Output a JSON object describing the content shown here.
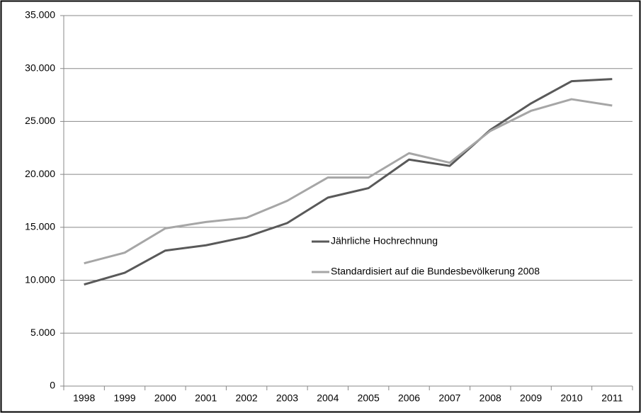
{
  "chart_data": {
    "type": "line",
    "categories": [
      "1998",
      "1999",
      "2000",
      "2001",
      "2002",
      "2003",
      "2004",
      "2005",
      "2006",
      "2007",
      "2008",
      "2009",
      "2010",
      "2011"
    ],
    "series": [
      {
        "name": "Jährliche Hochrechnung",
        "color": "#595959",
        "values": [
          9600,
          10700,
          12800,
          13300,
          14100,
          15400,
          17800,
          18700,
          21400,
          20800,
          24200,
          26700,
          28800,
          29000
        ]
      },
      {
        "name": "Standardisiert auf die Bundesbevölkerung 2008",
        "color": "#a6a6a6",
        "values": [
          11600,
          12600,
          14900,
          15500,
          15900,
          17500,
          19700,
          19700,
          22000,
          21100,
          24100,
          26000,
          27100,
          26500
        ]
      }
    ],
    "ylim": [
      0,
      35000
    ],
    "yticks": [
      0,
      {
        "value": 5000,
        "label": "5.000"
      },
      {
        "value": 10000,
        "label": "10.000"
      },
      {
        "value": 15000,
        "label": "15.000"
      },
      {
        "value": 20000,
        "label": "20.000"
      },
      {
        "value": 25000,
        "label": "25.000"
      },
      {
        "value": 30000,
        "label": "30.000"
      },
      {
        "value": 35000,
        "label": "35.000"
      }
    ],
    "grid": true
  }
}
